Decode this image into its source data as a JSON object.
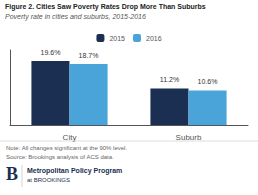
{
  "chart_data": {
    "type": "bar",
    "title": "Figure 2. Cities Saw Poverty Rates Drop More Than Suburbs",
    "subtitle": "Poverty rate in cities and suburbs, 2015-2016",
    "categories": [
      "City",
      "Suburb"
    ],
    "series": [
      {
        "name": "2015",
        "color": "#1b2f52",
        "values": [
          19.6,
          11.2
        ],
        "value_labels": [
          "19.6%",
          "11.2%"
        ]
      },
      {
        "name": "2016",
        "color": "#4aa3d9",
        "values": [
          18.7,
          10.6
        ],
        "value_labels": [
          "18.7%",
          "10.6%"
        ]
      }
    ],
    "ylim": [
      0,
      23
    ],
    "yticks": [],
    "grid": false,
    "legend": "top",
    "data_labels": true,
    "tick_labels": "x",
    "note": "Note: All changes significant at the 90% level.",
    "source": "Source: Brookings analysis of ACS data.",
    "annotations": [
      "B",
      "Metropolitan Policy Program",
      "at BROOKINGS"
    ]
  }
}
